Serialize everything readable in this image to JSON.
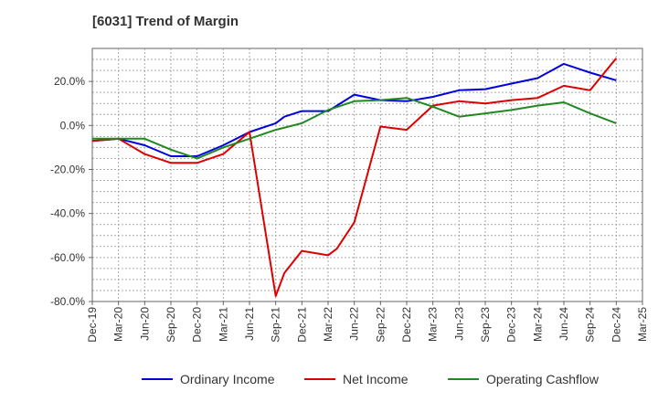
{
  "chart_data": {
    "type": "line",
    "title": "[6031]  Trend of Margin",
    "xlabel": "",
    "ylabel": "",
    "ylim": [
      -80,
      35
    ],
    "y_ticks": [
      20,
      0,
      -20,
      -40,
      -60,
      -80
    ],
    "y_tick_labels": [
      "20.0%",
      "0.0%",
      "-20.0%",
      "-40.0%",
      "-60.0%",
      "-80.0%"
    ],
    "x_tick_labels": [
      "Dec-19",
      "Mar-20",
      "Jun-20",
      "Sep-20",
      "Dec-20",
      "Mar-21",
      "Jun-21",
      "Sep-21",
      "Dec-21",
      "Mar-22",
      "Jun-22",
      "Sep-22",
      "Dec-22",
      "Mar-23",
      "Jun-23",
      "Sep-23",
      "Dec-23",
      "Mar-24",
      "Jun-24",
      "Sep-24",
      "Dec-24",
      "Mar-25"
    ],
    "grid": true,
    "legend_position": "bottom",
    "series": [
      {
        "name": "Ordinary Income",
        "color": "#0000dd",
        "x": [
          "Dec-19",
          "Mar-20",
          "Jun-20",
          "Sep-20",
          "Dec-20",
          "Mar-21",
          "Jun-21",
          "Sep-21",
          "Oct-21",
          "Dec-21",
          "Mar-22",
          "Jun-22",
          "Sep-22",
          "Dec-22",
          "Mar-23",
          "Jun-23",
          "Sep-23",
          "Dec-23",
          "Mar-24",
          "Jun-24",
          "Sep-24",
          "Dec-24"
        ],
        "values": [
          -7,
          -6,
          -9,
          -14,
          -14,
          -9,
          -3,
          1,
          4,
          6.5,
          6.5,
          14,
          11.5,
          11,
          13,
          16,
          16.5,
          19,
          21.5,
          28,
          24,
          20.5
        ]
      },
      {
        "name": "Net Income",
        "color": "#dd0000",
        "x": [
          "Dec-19",
          "Mar-20",
          "Jun-20",
          "Sep-20",
          "Dec-20",
          "Mar-21",
          "Jun-21",
          "Sep-21",
          "Oct-21",
          "Dec-21",
          "Mar-22",
          "Apr-22",
          "Jun-22",
          "Sep-22",
          "Dec-22",
          "Mar-23",
          "Jun-23",
          "Sep-23",
          "Dec-23",
          "Mar-24",
          "Jun-24",
          "Sep-24",
          "Dec-24"
        ],
        "values": [
          -7,
          -6,
          -13,
          -17,
          -17,
          -13,
          -3,
          -77.5,
          -67,
          -57,
          -59,
          -56,
          -44,
          -0.5,
          -2,
          9,
          11,
          10,
          11.5,
          12.5,
          18,
          16,
          30.5
        ]
      },
      {
        "name": "Operating Cashflow",
        "color": "#228822",
        "x": [
          "Dec-19",
          "Mar-20",
          "Jun-20",
          "Sep-20",
          "Dec-20",
          "Mar-21",
          "Jun-21",
          "Sep-21",
          "Dec-21",
          "Mar-22",
          "Jun-22",
          "Sep-22",
          "Dec-22",
          "Mar-23",
          "Jun-23",
          "Sep-23",
          "Dec-23",
          "Mar-24",
          "Jun-24",
          "Sep-24",
          "Dec-24"
        ],
        "values": [
          -6,
          -6,
          -6,
          -11,
          -15,
          -10,
          -6,
          -2,
          1,
          7,
          11,
          11.5,
          12.5,
          8.5,
          4,
          5.5,
          7,
          9,
          10.5,
          5.5,
          1
        ]
      }
    ]
  }
}
